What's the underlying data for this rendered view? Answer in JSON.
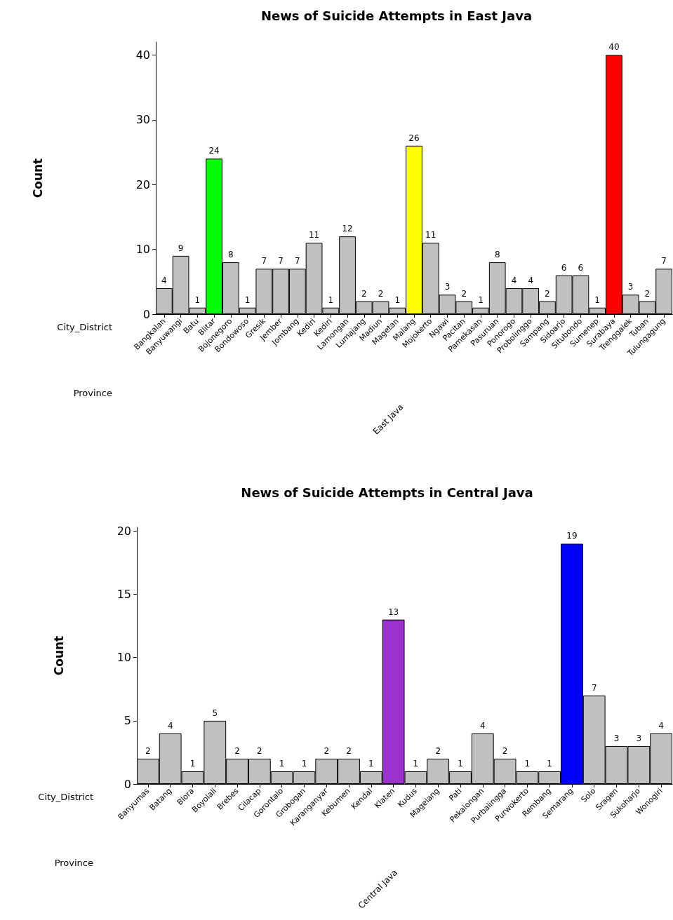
{
  "chart_data": [
    {
      "type": "bar",
      "title": "News of Suicide Attempts in East Java",
      "xlabel": "City_District",
      "ylabel": "Count",
      "annotations": [
        "Province",
        "East Java"
      ],
      "categories": [
        "Bangkalan",
        "Banyuwangi",
        "Batu",
        "Blitar",
        "Bojonegoro",
        "Bondowoso",
        "Gresik",
        "Jember",
        "Jombang",
        "Kediri",
        "Kediri",
        "Lamongan",
        "Lumajang",
        "Madiun",
        "Magetan",
        "Malang",
        "Mojokerto",
        "Ngawi",
        "Pacitan",
        "Pamekasan",
        "Pasuruan",
        "Ponorogo",
        "Probolinggo",
        "Sampang",
        "Sidoarjo",
        "Situbondo",
        "Sumenep",
        "Surabaya",
        "Trenggalek",
        "Tuban",
        "Tulungagung"
      ],
      "values": [
        4,
        9,
        1,
        24,
        8,
        1,
        7,
        7,
        7,
        11,
        1,
        12,
        2,
        2,
        1,
        26,
        11,
        3,
        2,
        1,
        8,
        4,
        4,
        2,
        6,
        6,
        1,
        40,
        3,
        2,
        7
      ],
      "colors": [
        "#c0c0c0",
        "#c0c0c0",
        "#c0c0c0",
        "#00ff00",
        "#c0c0c0",
        "#c0c0c0",
        "#c0c0c0",
        "#c0c0c0",
        "#c0c0c0",
        "#c0c0c0",
        "#c0c0c0",
        "#c0c0c0",
        "#c0c0c0",
        "#c0c0c0",
        "#c0c0c0",
        "#ffff00",
        "#c0c0c0",
        "#c0c0c0",
        "#c0c0c0",
        "#c0c0c0",
        "#c0c0c0",
        "#c0c0c0",
        "#c0c0c0",
        "#c0c0c0",
        "#c0c0c0",
        "#c0c0c0",
        "#c0c0c0",
        "#ff0000",
        "#c0c0c0",
        "#c0c0c0",
        "#c0c0c0"
      ],
      "ylim": [
        0,
        42
      ],
      "yticks": [
        0,
        10,
        20,
        30,
        40
      ],
      "data_labels": true
    },
    {
      "type": "bar",
      "title": "News of Suicide Attempts in Central Java",
      "xlabel": "City_District",
      "ylabel": "Count",
      "annotations": [
        "Province",
        "Central Java"
      ],
      "categories": [
        "Banyumas",
        "Batang",
        "Blora",
        "Boyolali",
        "Brebes",
        "Cilacap",
        "Gorontalo",
        "Grobogan",
        "Karanganyar",
        "Kebumen",
        "Kendal",
        "Klaten",
        "Kudus",
        "Magelang",
        "Pati",
        "Pekalongan",
        "Purbalingga",
        "Purwokerto",
        "Rembang",
        "Semarang",
        "Solo",
        "Sragen",
        "Sukoharjo",
        "Wonogiri"
      ],
      "values": [
        2,
        4,
        1,
        5,
        2,
        2,
        1,
        1,
        2,
        2,
        1,
        13,
        1,
        2,
        1,
        4,
        2,
        1,
        1,
        19,
        7,
        3,
        3,
        4
      ],
      "colors": [
        "#c0c0c0",
        "#c0c0c0",
        "#c0c0c0",
        "#c0c0c0",
        "#c0c0c0",
        "#c0c0c0",
        "#c0c0c0",
        "#c0c0c0",
        "#c0c0c0",
        "#c0c0c0",
        "#c0c0c0",
        "#9933cc",
        "#c0c0c0",
        "#c0c0c0",
        "#c0c0c0",
        "#c0c0c0",
        "#c0c0c0",
        "#c0c0c0",
        "#c0c0c0",
        "#0000ff",
        "#c0c0c0",
        "#c0c0c0",
        "#c0c0c0",
        "#c0c0c0"
      ],
      "ylim": [
        0,
        20.3
      ],
      "yticks": [
        0,
        5,
        10,
        15,
        20
      ],
      "data_labels": true
    }
  ]
}
